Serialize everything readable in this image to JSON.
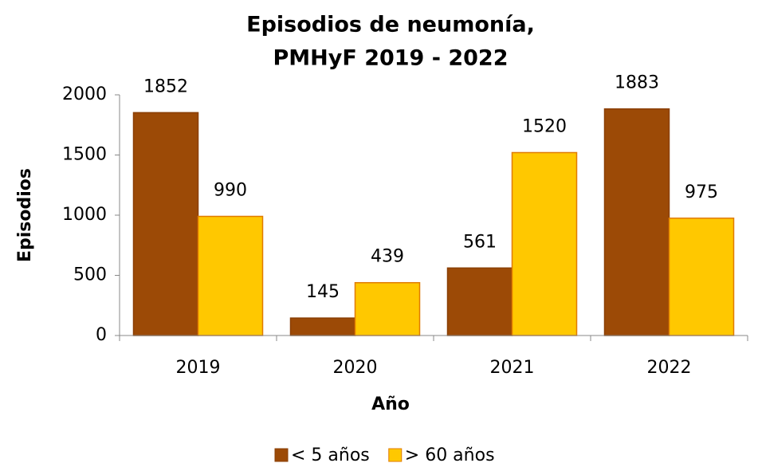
{
  "chart_data": {
    "type": "bar",
    "title": [
      "Episodios de neumonía,",
      "PMHyF 2019 - 2022"
    ],
    "x_label": "Año",
    "y_label": "Episodios",
    "categories": [
      "2019",
      "2020",
      "2021",
      "2022"
    ],
    "series": [
      {
        "name": "< 5 años",
        "color": "#9c4a06",
        "edge": "#8a3f04",
        "values": [
          1852,
          145,
          561,
          1883
        ]
      },
      {
        "name": "> 60 años",
        "color": "#ffc800",
        "edge": "#e07b00",
        "values": [
          990,
          439,
          1520,
          975
        ]
      }
    ],
    "ylim": [
      0,
      2000
    ],
    "yticks": [
      0,
      500,
      1000,
      1500,
      2000
    ],
    "grid": false,
    "legend": "bottom"
  }
}
